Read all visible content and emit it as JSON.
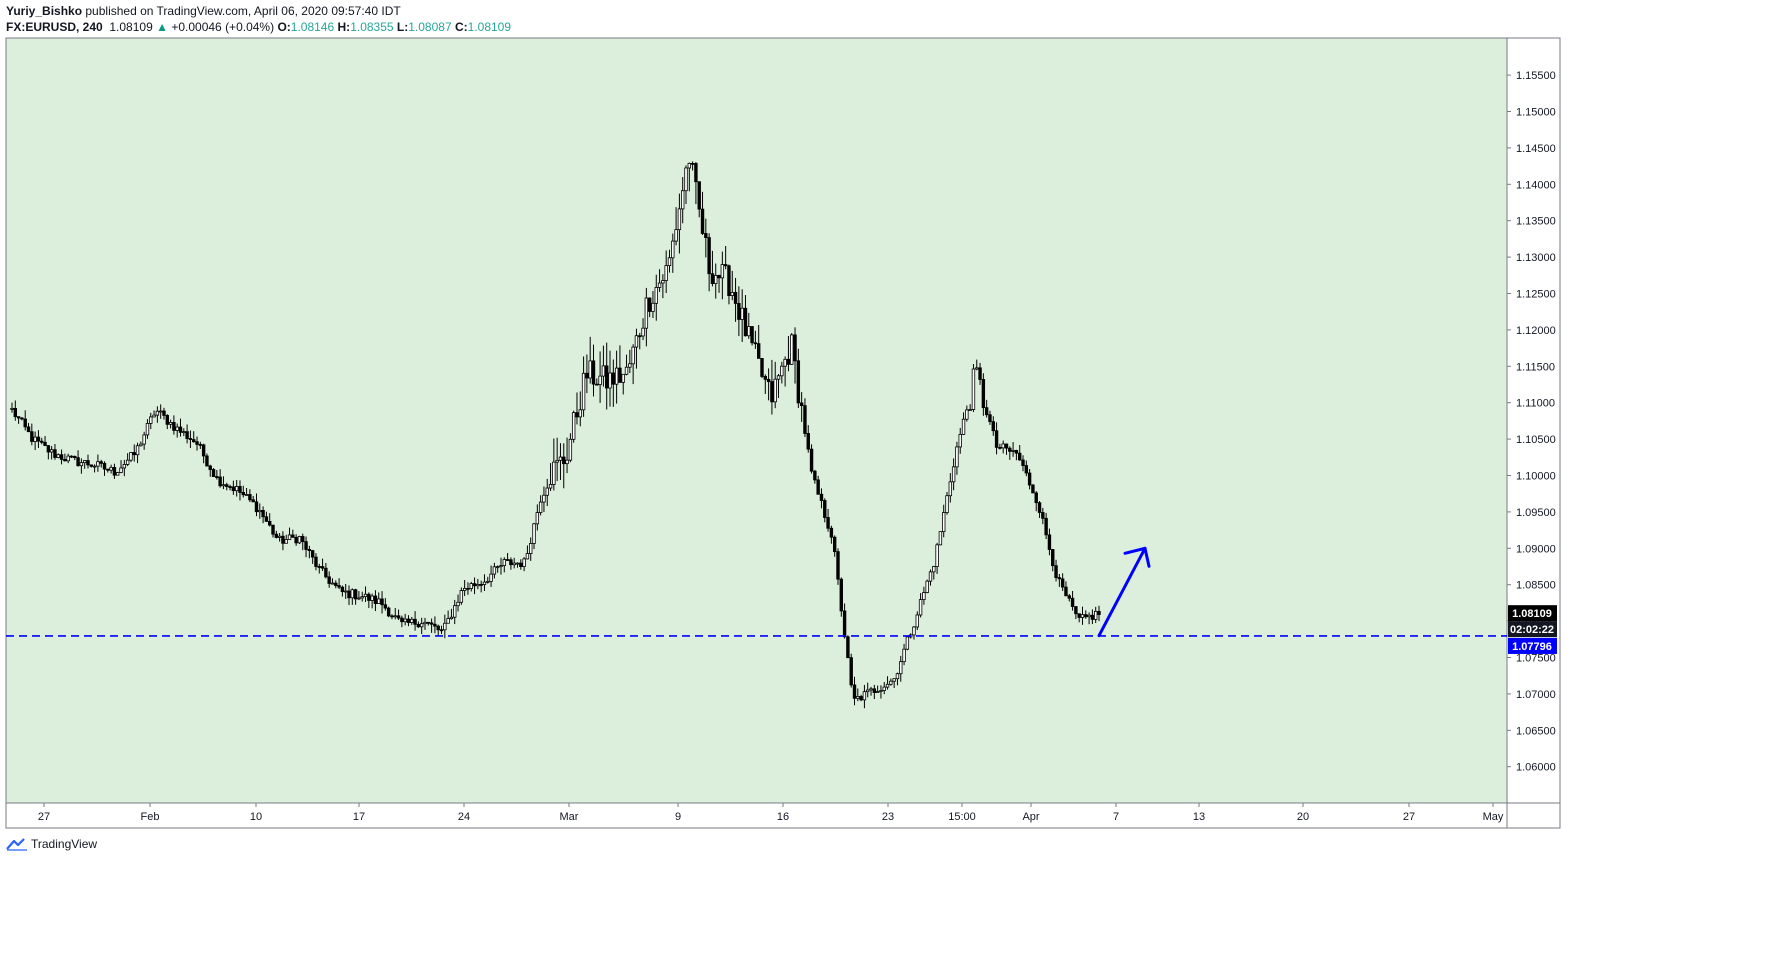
{
  "header": {
    "author": "Yuriy_Bishko",
    "published_text": "published on TradingView.com, April 06, 2020 09:57:40 IDT",
    "symbol": "FX:EURUSD, 240",
    "last_price": "1.08109",
    "change_arrow": "▲",
    "change": "+0.00046 (+0.04%)",
    "o_label": "O:",
    "o_value": "1.08146",
    "h_label": "H:",
    "h_value": "1.08355",
    "l_label": "L:",
    "l_value": "1.08087",
    "c_label": "C:",
    "c_value": "1.08109"
  },
  "brand": {
    "logo": "tradingview-logo-icon",
    "name": "TradingView"
  },
  "colors": {
    "chart_bg": "#dcefdc",
    "candle": "#000000",
    "support_line": "#0000ff",
    "arrow": "#0000ff",
    "last_price_badge": "#000000",
    "level_badge": "#0000ff"
  },
  "chart_data": {
    "type": "candlestick",
    "symbol": "FX:EURUSD",
    "interval": "240",
    "ylim": [
      1.0565,
      1.159
    ],
    "y_ticks": [
      "1.15500",
      "1.15000",
      "1.14500",
      "1.14000",
      "1.13500",
      "1.13000",
      "1.12500",
      "1.12000",
      "1.11500",
      "1.11000",
      "1.10500",
      "1.10000",
      "1.09500",
      "1.09000",
      "1.08500",
      "1.08000",
      "1.07500",
      "1.07000",
      "1.06500",
      "1.06000"
    ],
    "x_ticks": [
      "27",
      "Feb",
      "10",
      "17",
      "24",
      "Mar",
      "9",
      "16",
      "23",
      "15:00",
      "Apr",
      "7",
      "13",
      "20",
      "27",
      "May"
    ],
    "grid": false,
    "series_close_path": [
      {
        "x": "Jan 22",
        "close": 1.109
      },
      {
        "x": "Jan 23",
        "close": 1.105
      },
      {
        "x": "Jan 24",
        "close": 1.103
      },
      {
        "x": "Jan 27",
        "close": 1.102
      },
      {
        "x": "Jan 28",
        "close": 1.1015
      },
      {
        "x": "Jan 29",
        "close": 1.1005
      },
      {
        "x": "Jan 30",
        "close": 1.103
      },
      {
        "x": "Jan 31",
        "close": 1.109
      },
      {
        "x": "Feb 3",
        "close": 1.1065
      },
      {
        "x": "Feb 4",
        "close": 1.1045
      },
      {
        "x": "Feb 5",
        "close": 1.0995
      },
      {
        "x": "Feb 6",
        "close": 1.098
      },
      {
        "x": "Feb 7",
        "close": 1.0955
      },
      {
        "x": "Feb 10",
        "close": 1.091
      },
      {
        "x": "Feb 11",
        "close": 1.0915
      },
      {
        "x": "Feb 12",
        "close": 1.087
      },
      {
        "x": "Feb 13",
        "close": 1.084
      },
      {
        "x": "Feb 14",
        "close": 1.0835
      },
      {
        "x": "Feb 17",
        "close": 1.0825
      },
      {
        "x": "Feb 18",
        "close": 1.0795
      },
      {
        "x": "Feb 19",
        "close": 1.08
      },
      {
        "x": "Feb 20",
        "close": 1.0785
      },
      {
        "x": "Feb 21",
        "close": 1.0845
      },
      {
        "x": "Feb 24",
        "close": 1.0855
      },
      {
        "x": "Feb 25",
        "close": 1.088
      },
      {
        "x": "Feb 26",
        "close": 1.088
      },
      {
        "x": "Feb 27",
        "close": 1.0995
      },
      {
        "x": "Feb 28",
        "close": 1.1025
      },
      {
        "x": "Mar 2",
        "close": 1.114
      },
      {
        "x": "Mar 3",
        "close": 1.113
      },
      {
        "x": "Mar 4",
        "close": 1.114
      },
      {
        "x": "Mar 5",
        "close": 1.124
      },
      {
        "x": "Mar 6",
        "close": 1.1285
      },
      {
        "x": "Mar 9",
        "close": 1.144
      },
      {
        "x": "Mar 10",
        "close": 1.1285
      },
      {
        "x": "Mar 11",
        "close": 1.1265
      },
      {
        "x": "Mar 12",
        "close": 1.118
      },
      {
        "x": "Mar 13",
        "close": 1.1105
      },
      {
        "x": "Mar 16",
        "close": 1.118
      },
      {
        "x": "Mar 17",
        "close": 1.1
      },
      {
        "x": "Mar 18",
        "close": 1.0915
      },
      {
        "x": "Mar 19",
        "close": 1.069
      },
      {
        "x": "Mar 20",
        "close": 1.0705
      },
      {
        "x": "Mar 23",
        "close": 1.072
      },
      {
        "x": "Mar 24",
        "close": 1.08
      },
      {
        "x": "Mar 25",
        "close": 1.0885
      },
      {
        "x": "Mar 26",
        "close": 1.103
      },
      {
        "x": "Mar 27",
        "close": 1.114
      },
      {
        "x": "Mar 30",
        "close": 1.104
      },
      {
        "x": "Mar 31",
        "close": 1.103
      },
      {
        "x": "Apr 1",
        "close": 1.0965
      },
      {
        "x": "Apr 2",
        "close": 1.0855
      },
      {
        "x": "Apr 3",
        "close": 1.08
      },
      {
        "x": "Apr 6",
        "close": 1.0811
      }
    ],
    "annotations": {
      "support_level": 1.07796,
      "support_label": "1.07796",
      "last_price_label": "1.08109",
      "countdown_label": "02:02:22",
      "arrow_from": {
        "x": "Apr 6",
        "price": 1.078
      },
      "arrow_to": {
        "x": "Apr 9",
        "price": 1.09
      }
    }
  }
}
